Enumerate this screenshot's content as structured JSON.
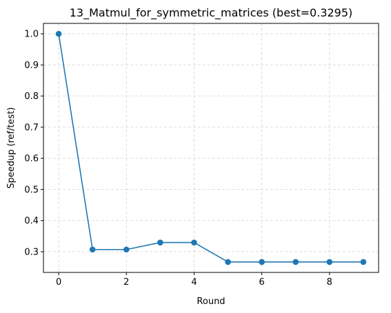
{
  "chart_data": {
    "type": "line",
    "title": "13_Matmul_for_symmetric_matrices (best=0.3295)",
    "xlabel": "Round",
    "ylabel": "Speedup (ref/test)",
    "x": [
      0,
      1,
      2,
      3,
      4,
      5,
      6,
      7,
      8,
      9
    ],
    "series": [
      {
        "values": [
          1.0,
          0.307,
          0.307,
          0.3295,
          0.3295,
          0.267,
          0.267,
          0.267,
          0.267,
          0.267
        ],
        "color": "#1f77b4",
        "marker": "circle"
      }
    ],
    "xlim": [
      -0.45,
      9.45
    ],
    "ylim": [
      0.2335,
      1.0335
    ],
    "xticks": [
      0,
      2,
      4,
      6,
      8
    ],
    "yticks": [
      0.3,
      0.4,
      0.5,
      0.6,
      0.7,
      0.8,
      0.9,
      1.0
    ],
    "xtick_labels": [
      "0",
      "2",
      "4",
      "6",
      "8"
    ],
    "ytick_labels": [
      "0.3",
      "0.4",
      "0.5",
      "0.6",
      "0.7",
      "0.8",
      "0.9",
      "1.0"
    ],
    "grid": true,
    "grid_style": "dashed",
    "grid_color": "#d3d3d3"
  }
}
